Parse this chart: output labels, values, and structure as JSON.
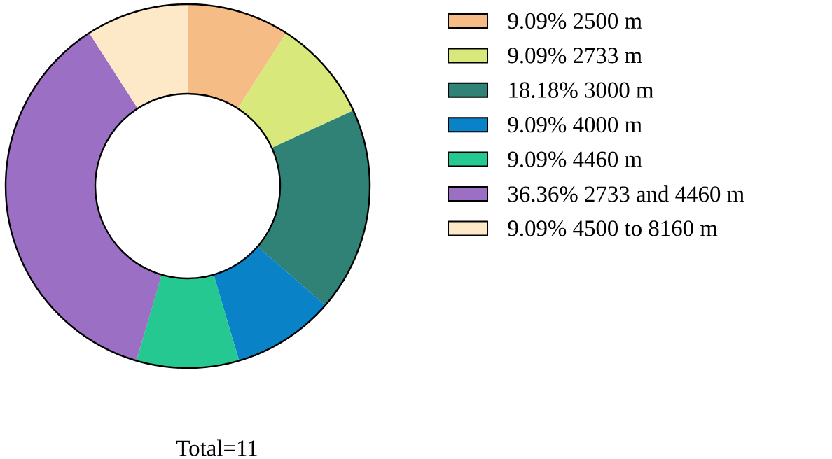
{
  "chart_data": {
    "type": "donut",
    "categories": [
      "9.09%  2500 m",
      "9.09%  2733 m",
      "18.18%  3000 m",
      "9.09%  4000 m",
      "9.09%  4460 m",
      "36.36%  2733 and 4460 m",
      "9.09%  4500 to 8160 m"
    ],
    "values": [
      9.09,
      9.09,
      18.18,
      9.09,
      9.09,
      36.36,
      9.09
    ],
    "colors": [
      "#f5bd85",
      "#d9e87a",
      "#2f8275",
      "#0a82c8",
      "#25c891",
      "#9b70c4",
      "#fde8c8"
    ],
    "legend": "right",
    "annotations": [
      "Total=11"
    ]
  }
}
